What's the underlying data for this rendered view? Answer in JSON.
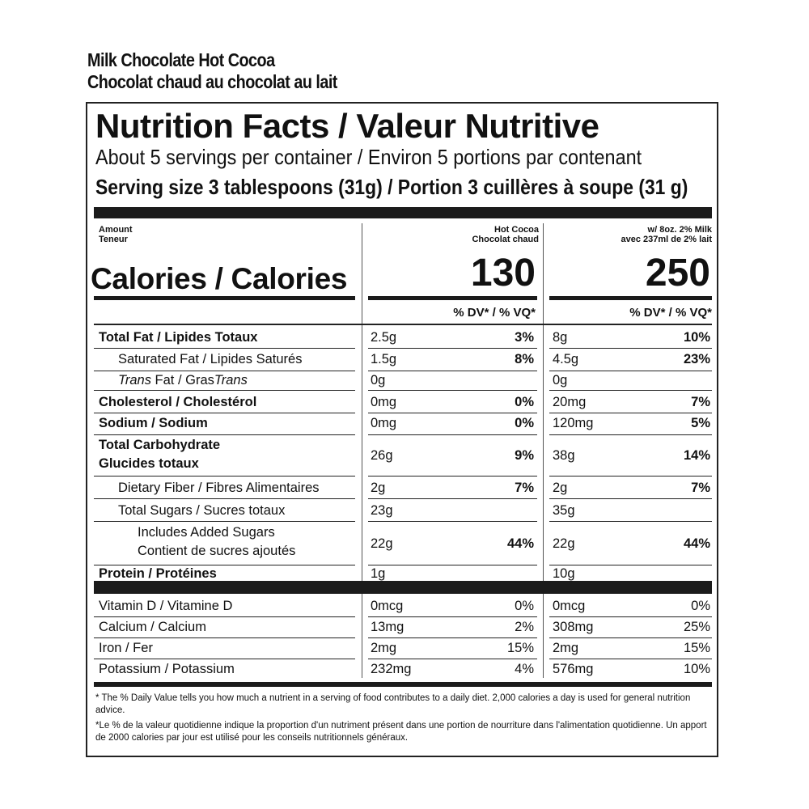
{
  "product": {
    "name_en": "Milk Chocolate Hot Cocoa",
    "name_fr": "Chocolat chaud au chocolat au lait"
  },
  "label": {
    "title": "Nutrition Facts / Valeur Nutritive",
    "servings": "About 5 servings per container / Environ 5 portions par contenant",
    "serving_size": "Serving size 3 tablespoons (31g) / Portion 3 cuillères à soupe (31 g)",
    "amount_en": "Amount",
    "amount_fr": "Teneur",
    "calories_label": "Calories / Calories",
    "col1_head_en": "Hot Cocoa",
    "col1_head_fr": "Chocolat chaud",
    "col2_head_en": "w/ 8oz. 2% Milk",
    "col2_head_fr": "avec 237ml de 2% lait",
    "col1_calories": "130",
    "col2_calories": "250",
    "dv_header": "% DV* / % VQ*",
    "nutrients": [
      {
        "label": "Total Fat / Lipides Totaux",
        "c1": "2.5g",
        "d1": "3%",
        "c2": "8g",
        "d2": "10%"
      },
      {
        "label": "Saturated Fat / Lipides Saturés",
        "c1": "1.5g",
        "d1": "8%",
        "c2": "4.5g",
        "d2": "23%"
      },
      {
        "label_it1": "Trans",
        "label_mid": " Fat / Gras",
        "label_it2": "Trans",
        "c1": "0g",
        "d1": "",
        "c2": "0g",
        "d2": ""
      },
      {
        "label": "Cholesterol / Cholestérol",
        "c1": "0mg",
        "d1": "0%",
        "c2": "20mg",
        "d2": "7%"
      },
      {
        "label": "Sodium / Sodium",
        "c1": "0mg",
        "d1": "0%",
        "c2": "120mg",
        "d2": "5%"
      },
      {
        "label_line1": "Total Carbohydrate",
        "label_line2": "Glucides totaux",
        "c1": "26g",
        "d1": "9%",
        "c2": "38g",
        "d2": "14%"
      },
      {
        "label": "Dietary Fiber / Fibres Alimentaires",
        "c1": "2g",
        "d1": "7%",
        "c2": "2g",
        "d2": "7%"
      },
      {
        "label": "Total Sugars / Sucres totaux",
        "c1": "23g",
        "d1": "",
        "c2": "35g",
        "d2": ""
      },
      {
        "label_line1": "Includes Added Sugars",
        "label_line2": "Contient de sucres ajoutés",
        "c1": "22g",
        "d1": "44%",
        "c2": "22g",
        "d2": "44%"
      },
      {
        "label": "Protein / Protéines",
        "c1": "1g",
        "d1": "",
        "c2": "10g",
        "d2": ""
      }
    ],
    "vitamins": [
      {
        "label": "Vitamin D / Vitamine D",
        "c1": "0mcg",
        "d1": "0%",
        "c2": "0mcg",
        "d2": "0%"
      },
      {
        "label": "Calcium / Calcium",
        "c1": "13mg",
        "d1": "2%",
        "c2": "308mg",
        "d2": "25%"
      },
      {
        "label": "Iron / Fer",
        "c1": "2mg",
        "d1": "15%",
        "c2": "2mg",
        "d2": "15%"
      },
      {
        "label": "Potassium / Potassium",
        "c1": "232mg",
        "d1": "4%",
        "c2": "576mg",
        "d2": "10%"
      }
    ],
    "footnote_en": "* The % Daily Value tells you how much a nutrient in a serving of food contributes to a daily diet. 2,000 calories a day is used for general nutrition advice.",
    "footnote_fr": "*Le % de la valeur quotidienne indique la proportion d'un nutriment présent dans une portion de nourriture dans l'alimentation quotidienne. Un apport de 2000 calories par jour est utilisé pour les conseils nutritionnels généraux."
  }
}
